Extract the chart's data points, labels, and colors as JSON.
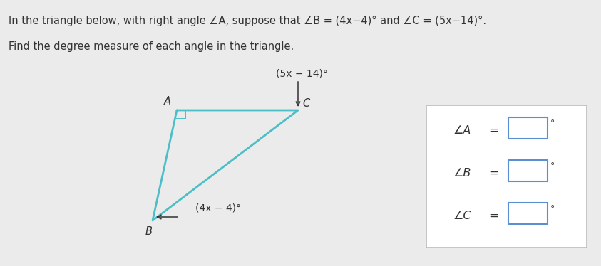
{
  "bg_color": "#ebebeb",
  "line1_part1": "In the triangle below, with right angle ∠A, suppose that ",
  "line1_angle_B": "∠B",
  "line1_part2": " = (4x−4)° and ",
  "line1_angle_C": "∠C",
  "line1_part3": " = (5x−14)°.",
  "line2": "Find the degree measure of each angle in the triangle.",
  "triangle_color": "#4bbec8",
  "triangle_linewidth": 2.0,
  "vertex_A": [
    0.295,
    0.72
  ],
  "vertex_B": [
    0.255,
    0.18
  ],
  "vertex_C": [
    0.5,
    0.72
  ],
  "label_A": "A",
  "label_B": "B",
  "label_C": "C",
  "angle_B_label": "(4x − 4)°",
  "angle_C_label": "(5x − 14)°",
  "text_color": "#333333",
  "box_border_color": "#bbbbbb",
  "input_box_color": "#5b8fd4",
  "font_size_main": 10.5,
  "font_size_labels": 10.5,
  "font_size_angle": 10.0
}
